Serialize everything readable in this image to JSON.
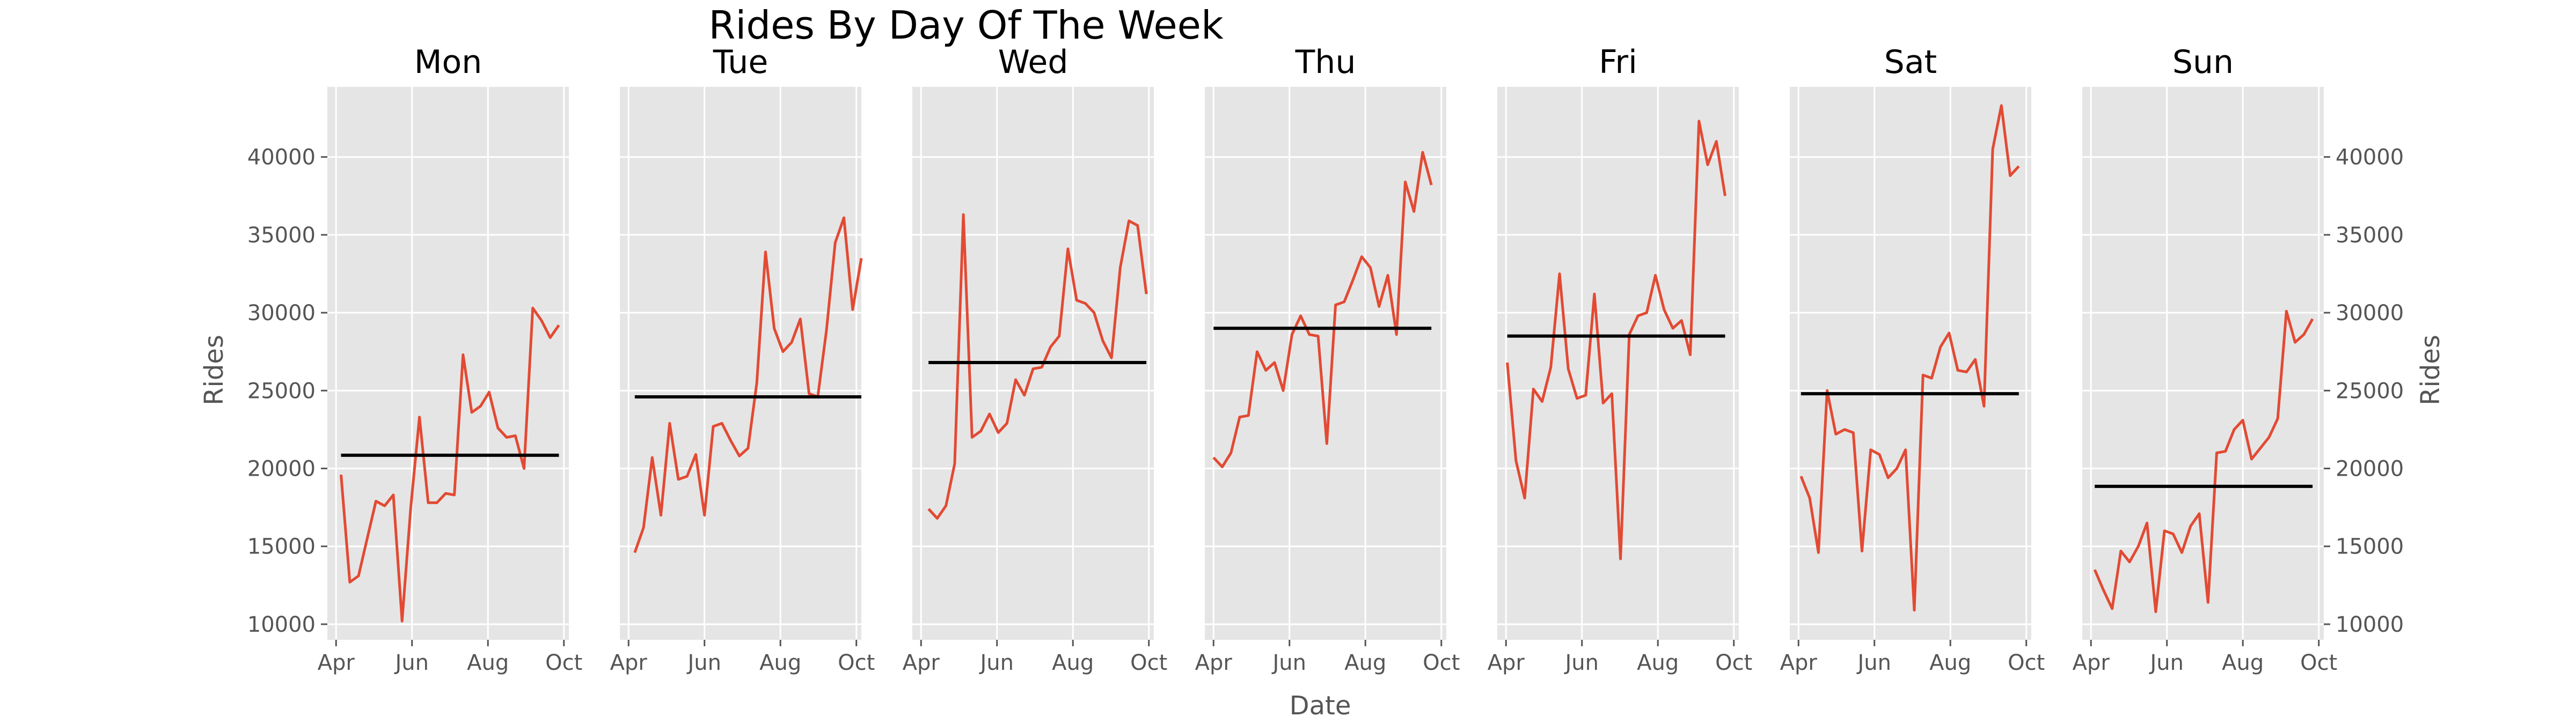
{
  "title": "Rides By Day Of The Week",
  "xlabel": "Date",
  "ylabel": "Rides",
  "colors": {
    "line": "#E24A33",
    "mean_line": "#000000",
    "panel_bg": "#E5E5E5",
    "grid": "#FFFFFF",
    "text": "#555555"
  },
  "chart_data": {
    "type": "line",
    "grid": true,
    "ylim": [
      9000,
      44500
    ],
    "xlim": [
      "2021-03-25",
      "2021-10-05"
    ],
    "yticks": [
      10000,
      15000,
      20000,
      25000,
      30000,
      35000,
      40000
    ],
    "xticks": [
      {
        "date": "2021-04-01",
        "label": "Apr"
      },
      {
        "date": "2021-06-01",
        "label": "Jun"
      },
      {
        "date": "2021-08-01",
        "label": "Aug"
      },
      {
        "date": "2021-10-01",
        "label": "Oct"
      }
    ],
    "panels": [
      {
        "title": "Mon",
        "start": "2021-04-05",
        "mean": 20850,
        "values": [
          19600,
          12700,
          13100,
          15500,
          17900,
          17600,
          18300,
          10200,
          17500,
          23300,
          17800,
          17800,
          18400,
          18300,
          27300,
          23600,
          24000,
          24900,
          22600,
          22000,
          22100,
          20000,
          30300,
          29500,
          28400,
          29200
        ]
      },
      {
        "title": "Tue",
        "start": "2021-04-06",
        "mean": 24600,
        "values": [
          14600,
          16200,
          20700,
          17000,
          22900,
          19300,
          19500,
          20900,
          17000,
          22700,
          22900,
          21800,
          20800,
          21300,
          25500,
          33900,
          29000,
          27500,
          28100,
          29600,
          24800,
          24600,
          28900,
          34500,
          36100,
          30200,
          33500
        ]
      },
      {
        "title": "Wed",
        "start": "2021-04-07",
        "mean": 26800,
        "values": [
          17400,
          16800,
          17600,
          20300,
          36300,
          22000,
          22400,
          23500,
          22300,
          22900,
          25700,
          24700,
          26400,
          26500,
          27800,
          28500,
          34100,
          30800,
          30600,
          30000,
          28200,
          27100,
          32900,
          35900,
          35600,
          31200
        ]
      },
      {
        "title": "Thu",
        "start": "2021-04-01",
        "mean": 29000,
        "values": [
          20700,
          20100,
          21000,
          23300,
          23400,
          27500,
          26300,
          26800,
          25000,
          28600,
          29800,
          28600,
          28500,
          21600,
          30500,
          30700,
          32100,
          33600,
          32900,
          30400,
          32400,
          28600,
          38400,
          36500,
          40300,
          38200
        ]
      },
      {
        "title": "Fri",
        "start": "2021-04-02",
        "mean": 28500,
        "values": [
          26800,
          20500,
          18100,
          25100,
          24300,
          26500,
          32500,
          26400,
          24500,
          24700,
          31200,
          24200,
          24800,
          14200,
          28600,
          29800,
          30000,
          32400,
          30200,
          29000,
          29500,
          27300,
          42300,
          39500,
          41000,
          37500
        ]
      },
      {
        "title": "Sat",
        "start": "2021-04-03",
        "mean": 24800,
        "values": [
          19500,
          18100,
          14600,
          25000,
          22200,
          22500,
          22300,
          14700,
          21200,
          20900,
          19400,
          20000,
          21200,
          10900,
          26000,
          25800,
          27800,
          28700,
          26300,
          26200,
          27000,
          24000,
          40500,
          43300,
          38800,
          39400
        ]
      },
      {
        "title": "Sun",
        "start": "2021-04-04",
        "mean": 18850,
        "values": [
          13500,
          12200,
          11000,
          14700,
          14000,
          15000,
          16500,
          10800,
          16000,
          15800,
          14600,
          16300,
          17100,
          11400,
          21000,
          21100,
          22500,
          23100,
          20600,
          21300,
          22000,
          23200,
          30100,
          28100,
          28600,
          29600
        ]
      }
    ]
  }
}
